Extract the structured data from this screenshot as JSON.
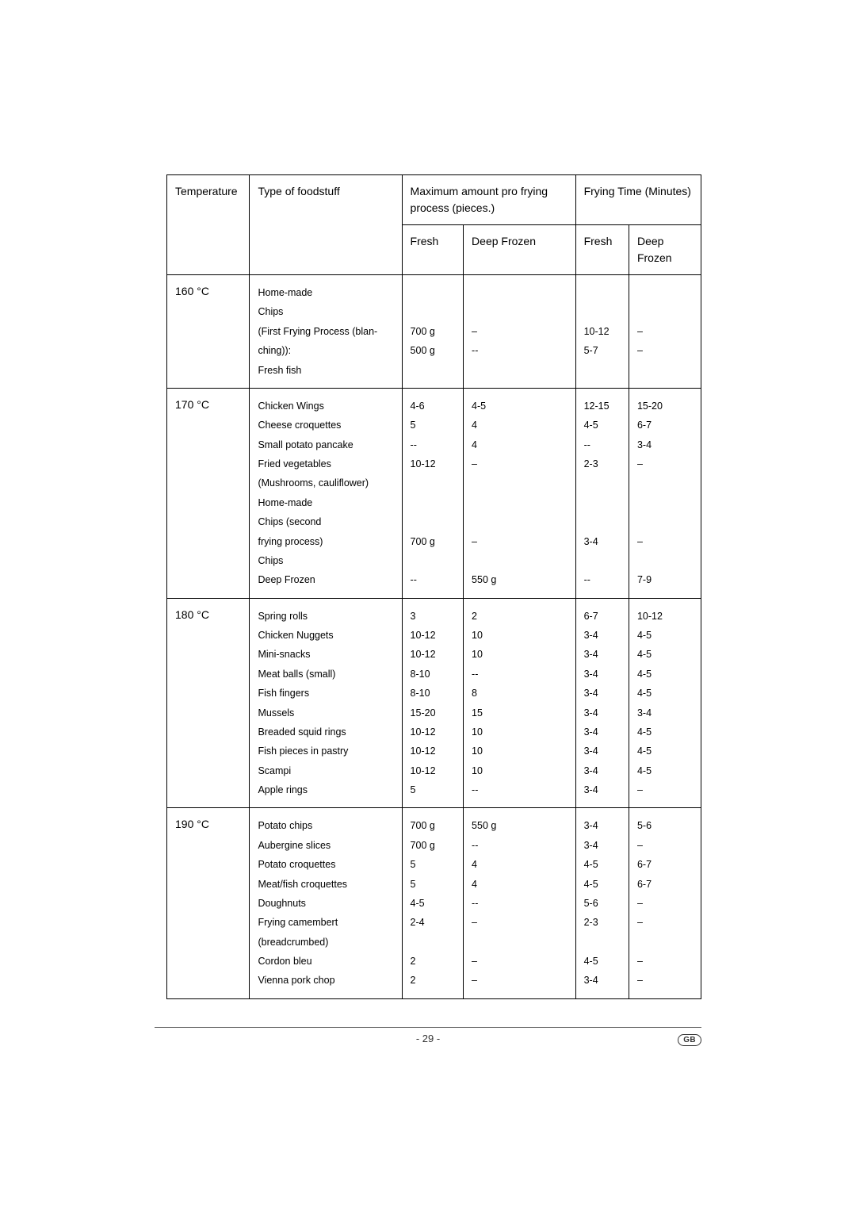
{
  "headers": {
    "temperature": "Temperature",
    "foodstuff": "Type of foodstuff",
    "max_amount": "Maximum amount pro frying process (pieces.)",
    "frying_time": "Frying Time (Minutes)",
    "fresh": "Fresh",
    "deep_frozen": "Deep Frozen"
  },
  "rows": [
    {
      "temp": "160 °C",
      "foods": "Home-made\nChips\n(First Frying Process (blan-\nching)):\nFresh fish\n ",
      "amt_fresh": "\n\n700 g\n500 g\n\n ",
      "amt_frozen": "\n\n–\n--\n\n ",
      "time_fresh": "\n\n10-12\n5-7\n\n ",
      "time_frozen": "\n\n–\n–\n\n "
    },
    {
      "temp": "170 °C",
      "foods": "Chicken Wings\nCheese croquettes\nSmall potato pancake\nFried vegetables\n(Mushrooms, cauliflower)\nHome-made\nChips (second\nfrying process)\nChips\nDeep Frozen",
      "amt_fresh": "4-6\n5\n--\n10-12\n\n\n\n700 g\n\n--",
      "amt_frozen": "4-5\n4\n4\n–\n\n\n\n–\n\n550 g",
      "time_fresh": "12-15\n4-5\n--\n2-3\n\n\n\n3-4\n\n--",
      "time_frozen": "15-20\n6-7\n3-4\n–\n\n\n\n–\n\n7-9"
    },
    {
      "temp": "180 °C",
      "foods": "Spring rolls\nChicken Nuggets\nMini-snacks\nMeat balls (small)\nFish fingers\nMussels\nBreaded squid rings\nFish pieces in pastry\nScampi\nApple rings",
      "amt_fresh": "3\n10-12\n10-12\n8-10\n8-10\n15-20\n10-12\n10-12\n10-12\n5",
      "amt_frozen": "2\n10\n10\n--\n8\n15\n10\n10\n10\n--",
      "time_fresh": "6-7\n3-4\n3-4\n3-4\n3-4\n3-4\n3-4\n3-4\n3-4\n3-4",
      "time_frozen": "10-12\n4-5\n4-5\n4-5\n4-5\n3-4\n4-5\n4-5\n4-5\n–"
    },
    {
      "temp": "190 °C",
      "foods": "Potato chips\nAubergine slices\nPotato croquettes\nMeat/fish croquettes\nDoughnuts\nFrying camembert\n(breadcrumbed)\nCordon bleu\nVienna pork chop\n ",
      "amt_fresh": "700 g\n700 g\n5\n5\n4-5\n2-4\n\n2\n2\n ",
      "amt_frozen": "550 g\n--\n4\n4\n--\n–\n\n–\n–\n ",
      "time_fresh": "3-4\n3-4\n4-5\n4-5\n5-6\n2-3\n\n4-5\n3-4\n ",
      "time_frozen": "5-6\n–\n6-7\n6-7\n–\n–\n\n–\n–\n "
    }
  ],
  "footer": {
    "page": "- 29 -",
    "badge": "GB"
  }
}
